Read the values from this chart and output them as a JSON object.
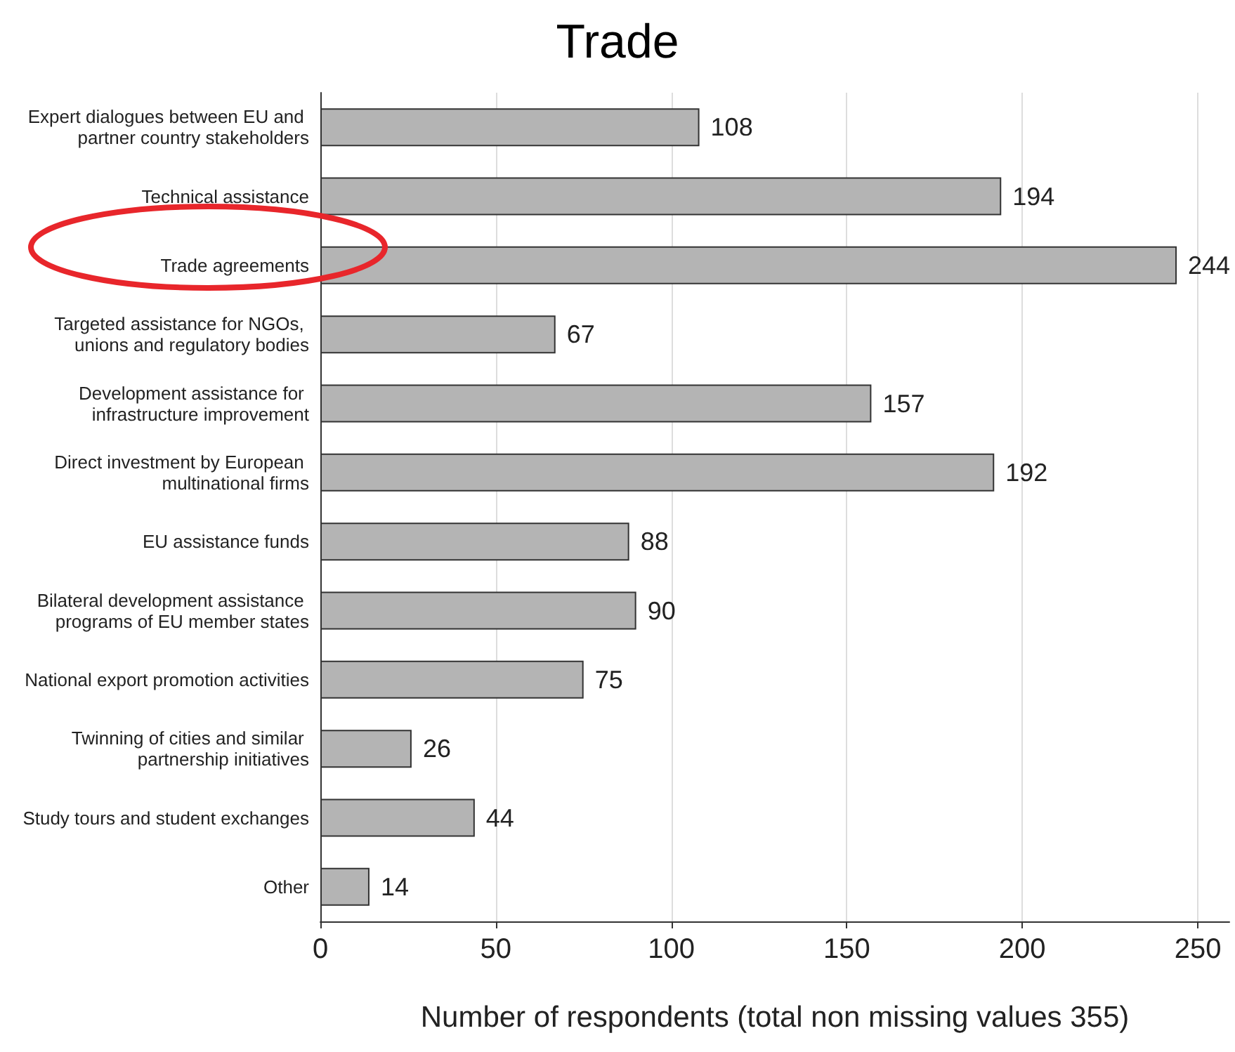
{
  "chart_data": {
    "type": "bar",
    "orientation": "horizontal",
    "title": "Trade",
    "xlabel": "Number of respondents (total non missing values 355)",
    "categories": [
      "Expert dialogues between EU and partner country stakeholders",
      "Technical assistance",
      "Trade agreements",
      "Targeted assistance for NGOs, unions and regulatory bodies",
      "Development assistance for infrastructure improvement",
      "Direct investment by European multinational firms",
      "EU assistance funds",
      "Bilateral development assistance programs of EU member states",
      "National export promotion activities",
      "Twinning of cities and similar partnership initiatives",
      "Study tours and student exchanges",
      "Other"
    ],
    "values": [
      108,
      194,
      244,
      67,
      157,
      192,
      88,
      90,
      75,
      26,
      44,
      14
    ],
    "color": "#b4b4b4",
    "data_labels": true,
    "grid": "x",
    "xlim": [
      0,
      259
    ],
    "xticks": [
      0,
      50,
      100,
      150,
      200,
      250
    ]
  }
}
